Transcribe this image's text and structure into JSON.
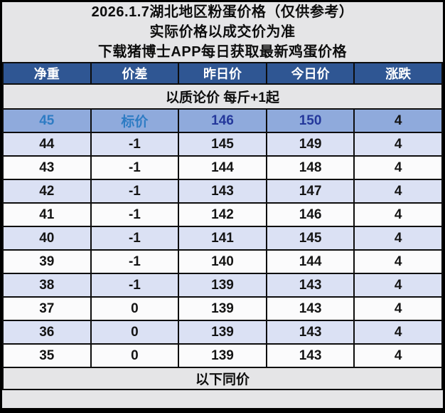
{
  "title": {
    "line1": "2026.1.7湖北地区粉蛋价格（仅供参考）",
    "line2": "实际价格以成交价为准",
    "line3": "下载猪博士APP每日获取最新鸡蛋价格"
  },
  "table": {
    "headers": [
      "净重",
      "价差",
      "昨日价",
      "今日价",
      "涨跌"
    ],
    "note": "以质论价 每斤+1起",
    "footer": "以下同价",
    "rows": [
      {
        "net": "45",
        "diff": "标价",
        "yesterday": "146",
        "today": "150",
        "change": "4",
        "highlight": true
      },
      {
        "net": "44",
        "diff": "-1",
        "yesterday": "145",
        "today": "149",
        "change": "4",
        "highlight": false
      },
      {
        "net": "43",
        "diff": "-1",
        "yesterday": "144",
        "today": "148",
        "change": "4",
        "highlight": false
      },
      {
        "net": "42",
        "diff": "-1",
        "yesterday": "143",
        "today": "147",
        "change": "4",
        "highlight": false
      },
      {
        "net": "41",
        "diff": "-1",
        "yesterday": "142",
        "today": "146",
        "change": "4",
        "highlight": false
      },
      {
        "net": "40",
        "diff": "-1",
        "yesterday": "141",
        "today": "145",
        "change": "4",
        "highlight": false
      },
      {
        "net": "39",
        "diff": "-1",
        "yesterday": "140",
        "today": "144",
        "change": "4",
        "highlight": false
      },
      {
        "net": "38",
        "diff": "-1",
        "yesterday": "139",
        "today": "143",
        "change": "4",
        "highlight": false
      },
      {
        "net": "37",
        "diff": "0",
        "yesterday": "139",
        "today": "143",
        "change": "4",
        "highlight": false
      },
      {
        "net": "36",
        "diff": "0",
        "yesterday": "139",
        "today": "143",
        "change": "4",
        "highlight": false
      },
      {
        "net": "35",
        "diff": "0",
        "yesterday": "139",
        "today": "143",
        "change": "4",
        "highlight": false
      }
    ]
  },
  "colors": {
    "header_blue": "#2f5693",
    "highlight_row_bg": "#8faadc",
    "highlight_label_text": "#2e7cc4",
    "highlight_price_text": "#24389b",
    "zebra_lavender": "#dbe1f4",
    "row_white": "#fbfbfc",
    "band_gray": "#e5e5e7",
    "border_black": "#0d0d0d"
  }
}
